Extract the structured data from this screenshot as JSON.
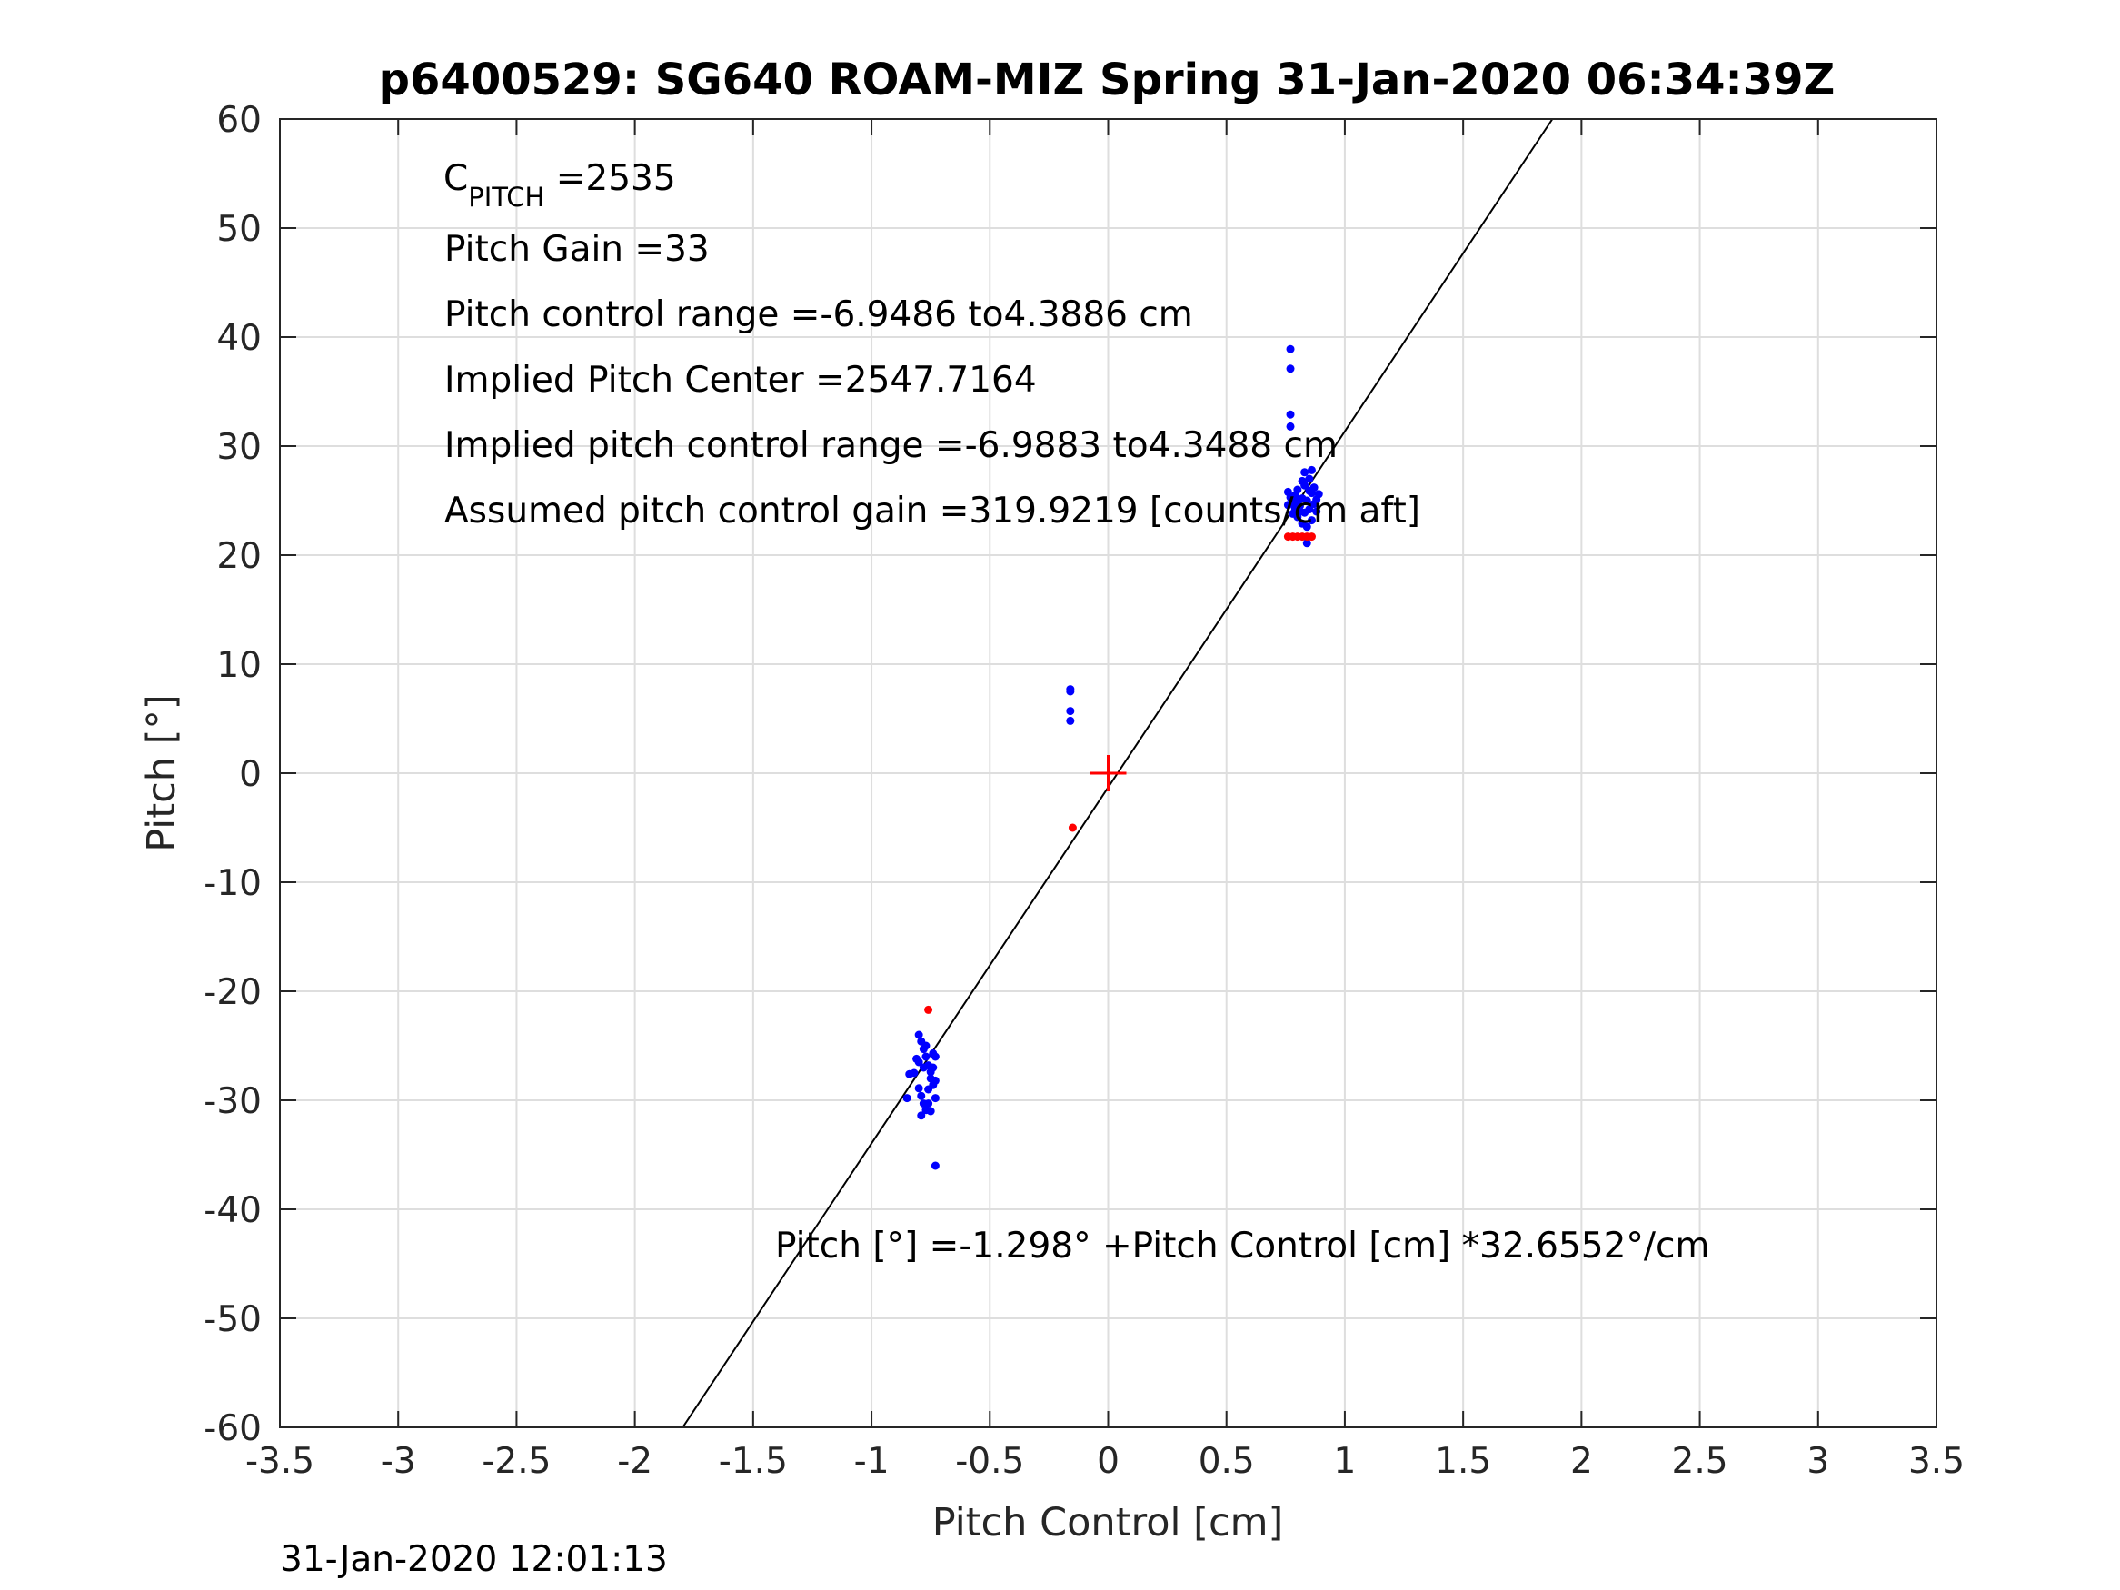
{
  "title": "p6400529: SG640 ROAM-MIZ Spring 31-Jan-2020 06:34:39Z",
  "timestamp": "31-Jan-2020 12:01:13",
  "annotations": {
    "cpitch_main": "C",
    "cpitch_sub": "PITCH",
    "cpitch_value": " =2535",
    "pitch_gain": "Pitch Gain =33",
    "pitch_control_range": "Pitch control range =-6.9486 to4.3886 cm",
    "implied_center": "Implied Pitch Center =2547.7164",
    "implied_range": "Implied pitch control range =-6.9883 to4.3488 cm",
    "assumed_gain": "Assumed pitch control gain =319.9219 [counts/cm aft]",
    "fit_equation": "Pitch [°] =-1.298° +Pitch Control [cm] *32.6552°/cm"
  },
  "chart_data": {
    "type": "scatter",
    "title": "p6400529: SG640 ROAM-MIZ Spring 31-Jan-2020 06:34:39Z",
    "xlabel": "Pitch Control [cm]",
    "ylabel": "Pitch [°]",
    "xlim": [
      -3.5,
      3.5
    ],
    "ylim": [
      -60,
      60
    ],
    "xticks": [
      -3.5,
      -3,
      -2.5,
      -2,
      -1.5,
      -1,
      -0.5,
      0,
      0.5,
      1,
      1.5,
      2,
      2.5,
      3,
      3.5
    ],
    "xtick_labels": [
      "-3.5",
      "-3",
      "-2.5",
      "-2",
      "-1.5",
      "-1",
      "-0.5",
      "0",
      "0.5",
      "1",
      "1.5",
      "2",
      "2.5",
      "3",
      "3.5"
    ],
    "yticks": [
      -60,
      -50,
      -40,
      -30,
      -20,
      -10,
      0,
      10,
      20,
      30,
      40,
      50,
      60
    ],
    "ytick_labels": [
      "-60",
      "-50",
      "-40",
      "-30",
      "-20",
      "-10",
      "0",
      "10",
      "20",
      "30",
      "40",
      "50",
      "60"
    ],
    "grid": true,
    "colors": {
      "blue": "#0000ff",
      "red": "#ff0000",
      "fit": "#000000",
      "grid": "#dedede",
      "axes": "#262626"
    },
    "fit_line": {
      "intercept": -1.298,
      "slope": 32.6552
    },
    "center_marker": {
      "x": 0,
      "y": 0,
      "color": "#ff0000"
    },
    "series": [
      {
        "color": "#0000ff",
        "points": [
          [
            0.77,
            38.9
          ],
          [
            0.77,
            37.1
          ],
          [
            0.77,
            32.9
          ],
          [
            0.77,
            31.8
          ],
          [
            0.76,
            25.8
          ],
          [
            0.77,
            25.3
          ],
          [
            0.78,
            24.8
          ],
          [
            0.79,
            25.5
          ],
          [
            0.8,
            26.0
          ],
          [
            0.81,
            24.5
          ],
          [
            0.82,
            25.2
          ],
          [
            0.83,
            26.4
          ],
          [
            0.84,
            25.0
          ],
          [
            0.85,
            24.2
          ],
          [
            0.86,
            25.7
          ],
          [
            0.87,
            26.2
          ],
          [
            0.88,
            25.1
          ],
          [
            0.89,
            25.6
          ],
          [
            0.83,
            27.6
          ],
          [
            0.86,
            27.8
          ],
          [
            0.85,
            27.0
          ],
          [
            0.8,
            23.5
          ],
          [
            0.82,
            22.9
          ],
          [
            0.84,
            22.6
          ],
          [
            0.86,
            23.2
          ],
          [
            0.84,
            21.1
          ],
          [
            0.81,
            24.0
          ],
          [
            0.79,
            24.3
          ],
          [
            0.87,
            24.7
          ],
          [
            0.78,
            23.8
          ],
          [
            0.83,
            23.9
          ],
          [
            0.85,
            25.9
          ],
          [
            0.88,
            24.0
          ],
          [
            0.76,
            24.6
          ],
          [
            0.8,
            25.0
          ],
          [
            0.82,
            26.8
          ],
          [
            -0.16,
            7.7
          ],
          [
            -0.16,
            7.5
          ],
          [
            -0.16,
            5.7
          ],
          [
            -0.16,
            4.8
          ],
          [
            -0.8,
            -24.0
          ],
          [
            -0.79,
            -24.6
          ],
          [
            -0.78,
            -25.3
          ],
          [
            -0.77,
            -26.0
          ],
          [
            -0.76,
            -26.8
          ],
          [
            -0.75,
            -27.4
          ],
          [
            -0.74,
            -25.7
          ],
          [
            -0.73,
            -28.2
          ],
          [
            -0.8,
            -28.9
          ],
          [
            -0.79,
            -29.6
          ],
          [
            -0.78,
            -30.3
          ],
          [
            -0.77,
            -30.9
          ],
          [
            -0.76,
            -29.0
          ],
          [
            -0.75,
            -28.0
          ],
          [
            -0.74,
            -27.0
          ],
          [
            -0.73,
            -29.8
          ],
          [
            -0.82,
            -27.5
          ],
          [
            -0.84,
            -27.6
          ],
          [
            -0.85,
            -29.8
          ],
          [
            -0.79,
            -31.4
          ],
          [
            -0.78,
            -27.0
          ],
          [
            -0.81,
            -26.2
          ],
          [
            -0.77,
            -25.0
          ],
          [
            -0.76,
            -30.3
          ],
          [
            -0.8,
            -26.5
          ],
          [
            -0.74,
            -28.6
          ],
          [
            -0.73,
            -26.0
          ],
          [
            -0.75,
            -31.0
          ],
          [
            -0.73,
            -36.0
          ]
        ]
      },
      {
        "color": "#ff0000",
        "points": [
          [
            0.76,
            21.7
          ],
          [
            0.78,
            21.7
          ],
          [
            0.8,
            21.7
          ],
          [
            0.82,
            21.7
          ],
          [
            0.84,
            21.7
          ],
          [
            0.86,
            21.7
          ],
          [
            -0.15,
            -5.0
          ],
          [
            -0.76,
            -21.7
          ]
        ]
      }
    ]
  }
}
